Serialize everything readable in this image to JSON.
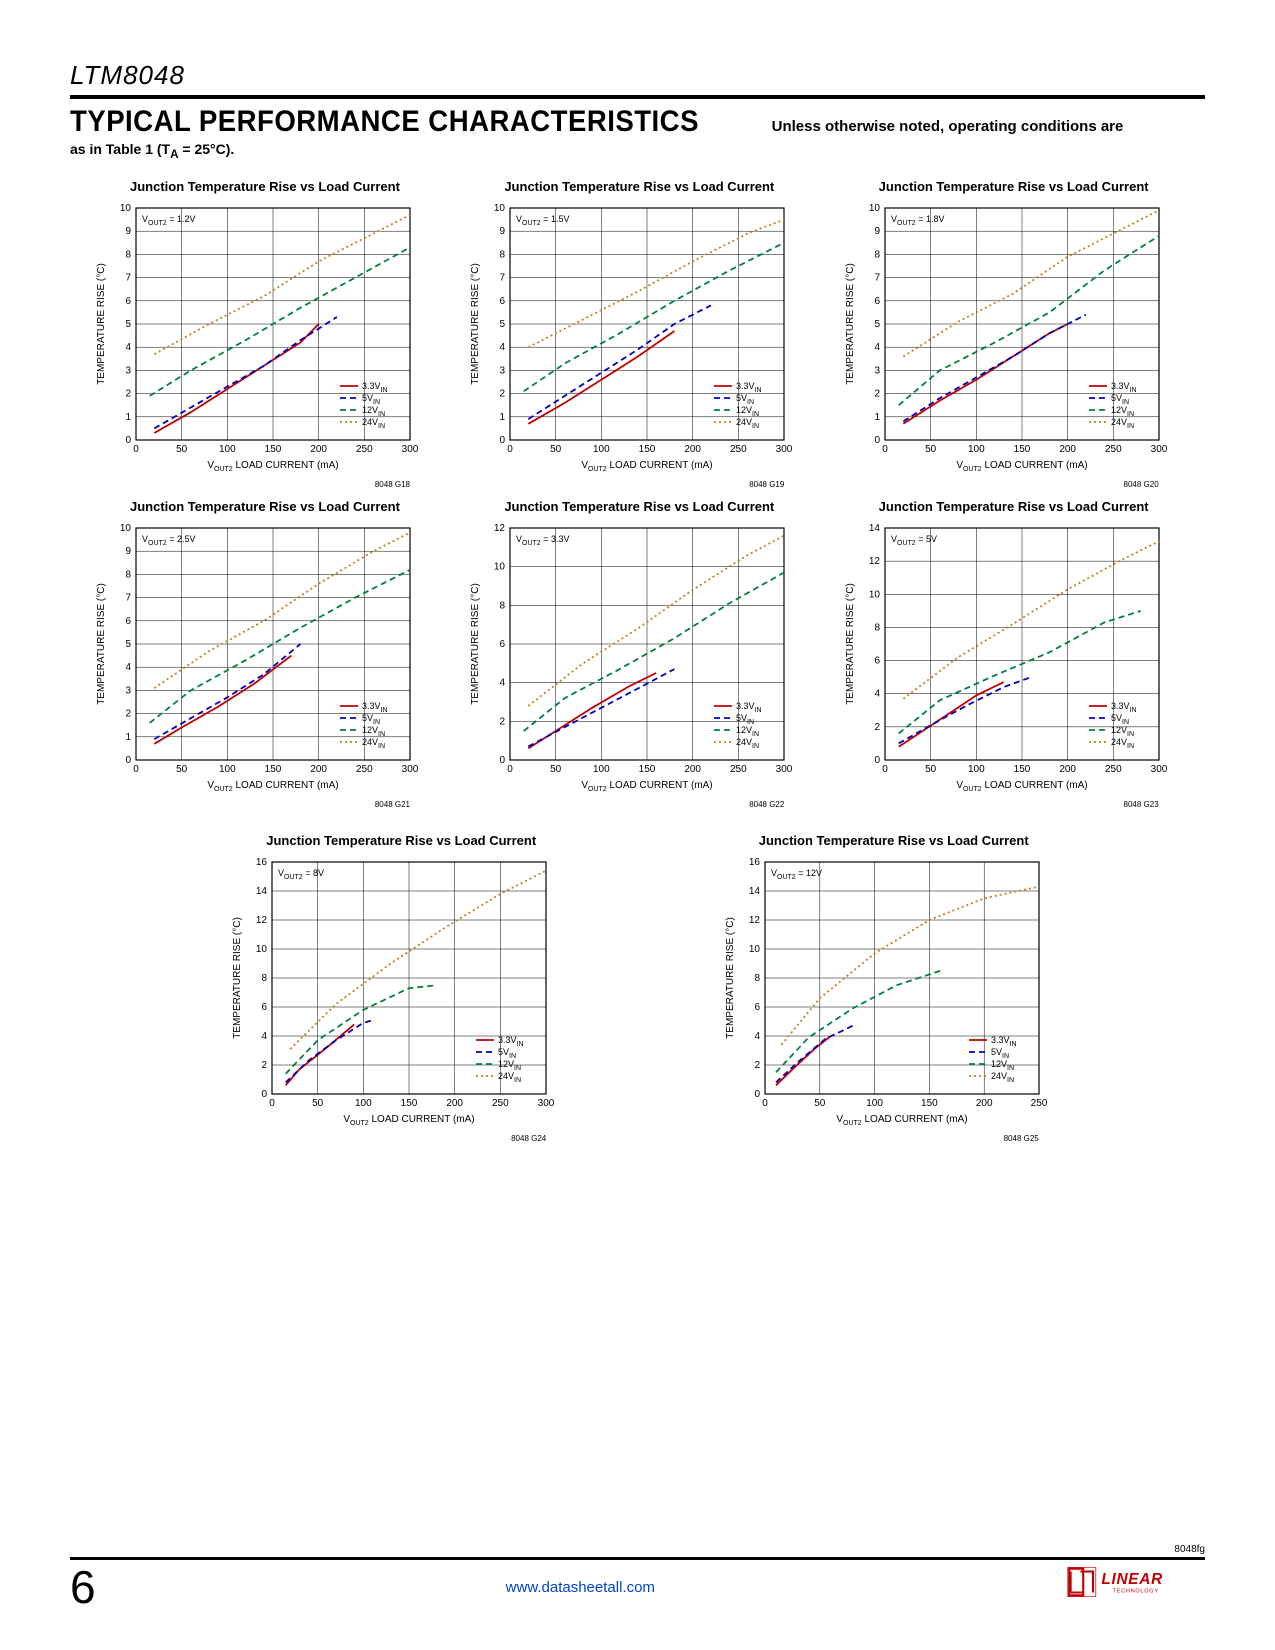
{
  "header": {
    "partNumber": "LTM8048",
    "sectionTitle": "TYPICAL PERFORMANCE CHARACTERISTICS",
    "sectionNote": "Unless otherwise noted, operating conditions are",
    "subNote": "as in Table 1 (T",
    "subNoteSub": "A",
    "subNoteTail": " = 25°C)."
  },
  "common": {
    "ylabel": "TEMPERATURE RISE (°C)",
    "xlabel": "V",
    "xlabelSub": "OUT2",
    "xlabelTail": " LOAD CURRENT (mA)",
    "legend": [
      {
        "label": "3.3V",
        "sub": "IN",
        "color": "#c00000",
        "dash": ""
      },
      {
        "label": "5V",
        "sub": "IN",
        "color": "#0000c0",
        "dash": "6 4"
      },
      {
        "label": "12V",
        "sub": "IN",
        "color": "#008040",
        "dash": "6 4"
      },
      {
        "label": "24V",
        "sub": "IN",
        "color": "#c08020",
        "dash": "2 3"
      }
    ],
    "xticks": [
      0,
      50,
      100,
      150,
      200,
      250,
      300
    ]
  },
  "charts": [
    {
      "title": "Junction Temperature Rise vs Load Current",
      "annot": "V",
      "annotSub": "OUT2",
      "annotTail": " = 1.2V",
      "code": "8048 G18",
      "ymax": 10,
      "yticks": [
        0,
        1,
        2,
        3,
        4,
        5,
        6,
        7,
        8,
        9,
        10
      ],
      "xmax": 300,
      "series": [
        {
          "x": [
            20,
            60,
            100,
            140,
            180,
            200
          ],
          "y": [
            0.3,
            1.2,
            2.2,
            3.2,
            4.2,
            5.0
          ],
          "c": "#c00000",
          "d": ""
        },
        {
          "x": [
            20,
            60,
            100,
            140,
            180,
            220
          ],
          "y": [
            0.5,
            1.4,
            2.3,
            3.2,
            4.3,
            5.3
          ],
          "c": "#0000c0",
          "d": "6 4"
        },
        {
          "x": [
            15,
            60,
            120,
            180,
            240,
            300
          ],
          "y": [
            1.9,
            3.0,
            4.3,
            5.7,
            7.0,
            8.3
          ],
          "c": "#008040",
          "d": "6 4"
        },
        {
          "x": [
            20,
            80,
            140,
            200,
            260,
            300
          ],
          "y": [
            3.7,
            5.0,
            6.2,
            7.7,
            8.9,
            9.7
          ],
          "c": "#c08020",
          "d": "2 3"
        }
      ]
    },
    {
      "title": "Junction Temperature Rise vs Load Current",
      "annot": "V",
      "annotSub": "OUT2",
      "annotTail": " = 1.5V",
      "code": "8048 G19",
      "ymax": 10,
      "yticks": [
        0,
        1,
        2,
        3,
        4,
        5,
        6,
        7,
        8,
        9,
        10
      ],
      "xmax": 300,
      "series": [
        {
          "x": [
            20,
            60,
            100,
            140,
            180
          ],
          "y": [
            0.7,
            1.6,
            2.6,
            3.6,
            4.7
          ],
          "c": "#c00000",
          "d": ""
        },
        {
          "x": [
            20,
            60,
            100,
            140,
            180,
            220
          ],
          "y": [
            0.9,
            1.9,
            2.9,
            3.9,
            5.0,
            5.8
          ],
          "c": "#0000c0",
          "d": "6 4"
        },
        {
          "x": [
            15,
            60,
            120,
            180,
            240,
            300
          ],
          "y": [
            2.1,
            3.3,
            4.6,
            6.0,
            7.3,
            8.5
          ],
          "c": "#008040",
          "d": "6 4"
        },
        {
          "x": [
            20,
            80,
            140,
            200,
            260,
            300
          ],
          "y": [
            4.0,
            5.2,
            6.4,
            7.7,
            8.9,
            9.5
          ],
          "c": "#c08020",
          "d": "2 3"
        }
      ]
    },
    {
      "title": "Junction Temperature Rise vs Load Current",
      "annot": "V",
      "annotSub": "OUT2",
      "annotTail": " = 1.8V",
      "code": "8048 G20",
      "ymax": 10,
      "yticks": [
        0,
        1,
        2,
        3,
        4,
        5,
        6,
        7,
        8,
        9,
        10
      ],
      "xmax": 300,
      "series": [
        {
          "x": [
            20,
            60,
            100,
            140,
            180,
            200
          ],
          "y": [
            0.7,
            1.7,
            2.6,
            3.6,
            4.6,
            5.0
          ],
          "c": "#c00000",
          "d": ""
        },
        {
          "x": [
            20,
            60,
            100,
            140,
            180,
            220
          ],
          "y": [
            0.8,
            1.8,
            2.7,
            3.6,
            4.6,
            5.4
          ],
          "c": "#0000c0",
          "d": "6 4"
        },
        {
          "x": [
            15,
            60,
            120,
            180,
            240,
            300
          ],
          "y": [
            1.5,
            3.0,
            4.2,
            5.5,
            7.3,
            8.8
          ],
          "c": "#008040",
          "d": "6 4"
        },
        {
          "x": [
            20,
            80,
            140,
            200,
            260,
            300
          ],
          "y": [
            3.6,
            5.1,
            6.3,
            7.9,
            9.1,
            9.9
          ],
          "c": "#c08020",
          "d": "2 3"
        }
      ]
    },
    {
      "title": "Junction Temperature Rise vs Load Current",
      "annot": "V",
      "annotSub": "OUT2",
      "annotTail": " = 2.5V",
      "code": "8048 G21",
      "ymax": 10,
      "yticks": [
        0,
        1,
        2,
        3,
        4,
        5,
        6,
        7,
        8,
        9,
        10
      ],
      "xmax": 300,
      "series": [
        {
          "x": [
            20,
            50,
            90,
            130,
            170
          ],
          "y": [
            0.7,
            1.4,
            2.3,
            3.3,
            4.5
          ],
          "c": "#c00000",
          "d": ""
        },
        {
          "x": [
            20,
            60,
            100,
            140,
            180
          ],
          "y": [
            0.9,
            1.8,
            2.7,
            3.7,
            5.0
          ],
          "c": "#0000c0",
          "d": "6 4"
        },
        {
          "x": [
            15,
            60,
            120,
            180,
            240,
            300
          ],
          "y": [
            1.6,
            3.0,
            4.3,
            5.7,
            7.0,
            8.2
          ],
          "c": "#008040",
          "d": "6 4"
        },
        {
          "x": [
            20,
            80,
            140,
            200,
            260,
            300
          ],
          "y": [
            3.1,
            4.7,
            6.0,
            7.6,
            9.0,
            9.8
          ],
          "c": "#c08020",
          "d": "2 3"
        }
      ]
    },
    {
      "title": "Junction Temperature Rise vs Load Current",
      "annot": "V",
      "annotSub": "OUT2",
      "annotTail": " = 3.3V",
      "code": "8048 G22",
      "ymax": 12,
      "yticks": [
        0,
        2,
        4,
        6,
        8,
        10,
        12
      ],
      "xmax": 300,
      "series": [
        {
          "x": [
            20,
            50,
            90,
            130,
            160
          ],
          "y": [
            0.6,
            1.5,
            2.7,
            3.8,
            4.5
          ],
          "c": "#c00000",
          "d": ""
        },
        {
          "x": [
            20,
            60,
            100,
            140,
            180
          ],
          "y": [
            0.7,
            1.7,
            2.7,
            3.7,
            4.7
          ],
          "c": "#0000c0",
          "d": "6 4"
        },
        {
          "x": [
            15,
            60,
            120,
            180,
            240,
            300
          ],
          "y": [
            1.5,
            3.2,
            4.7,
            6.3,
            8.1,
            9.7
          ],
          "c": "#008040",
          "d": "6 4"
        },
        {
          "x": [
            20,
            80,
            140,
            200,
            260,
            300
          ],
          "y": [
            2.8,
            5.0,
            6.8,
            8.8,
            10.6,
            11.6
          ],
          "c": "#c08020",
          "d": "2 3"
        }
      ]
    },
    {
      "title": "Junction Temperature Rise vs Load Current",
      "annot": "V",
      "annotSub": "OUT2",
      "annotTail": " = 5V",
      "code": "8048 G23",
      "ymax": 14,
      "yticks": [
        0,
        2,
        4,
        6,
        8,
        10,
        12,
        14
      ],
      "xmax": 300,
      "series": [
        {
          "x": [
            15,
            40,
            70,
            100,
            130
          ],
          "y": [
            0.8,
            1.7,
            2.8,
            3.9,
            4.7
          ],
          "c": "#c00000",
          "d": ""
        },
        {
          "x": [
            15,
            50,
            90,
            130,
            160
          ],
          "y": [
            1.0,
            2.1,
            3.3,
            4.4,
            5.0
          ],
          "c": "#0000c0",
          "d": "6 4"
        },
        {
          "x": [
            15,
            60,
            120,
            180,
            240,
            280
          ],
          "y": [
            1.6,
            3.6,
            5.1,
            6.5,
            8.3,
            9.0
          ],
          "c": "#008040",
          "d": "6 4"
        },
        {
          "x": [
            20,
            80,
            140,
            200,
            260,
            300
          ],
          "y": [
            3.7,
            6.2,
            8.2,
            10.3,
            12.1,
            13.2
          ],
          "c": "#c08020",
          "d": "2 3"
        }
      ]
    },
    {
      "title": "Junction Temperature Rise vs Load Current",
      "annot": "V",
      "annotSub": "OUT2",
      "annotTail": " = 8V",
      "code": "8048 G24",
      "ymax": 16,
      "yticks": [
        0,
        2,
        4,
        6,
        8,
        10,
        12,
        14,
        16
      ],
      "xmax": 300,
      "series": [
        {
          "x": [
            15,
            30,
            60,
            90
          ],
          "y": [
            0.6,
            1.7,
            3.2,
            4.8
          ],
          "c": "#c00000",
          "d": ""
        },
        {
          "x": [
            15,
            40,
            70,
            100,
            110
          ],
          "y": [
            0.8,
            2.3,
            3.7,
            4.9,
            5.1
          ],
          "c": "#0000c0",
          "d": "6 4"
        },
        {
          "x": [
            15,
            50,
            100,
            150,
            180
          ],
          "y": [
            1.4,
            3.7,
            5.8,
            7.3,
            7.5
          ],
          "c": "#008040",
          "d": "6 4"
        },
        {
          "x": [
            20,
            70,
            130,
            190,
            250,
            300
          ],
          "y": [
            3.1,
            6.2,
            9.0,
            11.5,
            13.8,
            15.4
          ],
          "c": "#c08020",
          "d": "2 3"
        }
      ]
    },
    {
      "title": "Junction Temperature Rise vs Load Current",
      "annot": "V",
      "annotSub": "OUT2",
      "annotTail": " = 12V",
      "code": "8048 G25",
      "ymax": 16,
      "yticks": [
        0,
        2,
        4,
        6,
        8,
        10,
        12,
        14,
        16
      ],
      "xmax": 250,
      "series": [
        {
          "x": [
            10,
            25,
            45,
            60
          ],
          "y": [
            0.6,
            1.7,
            3.1,
            4.0
          ],
          "c": "#c00000",
          "d": ""
        },
        {
          "x": [
            10,
            30,
            55,
            80
          ],
          "y": [
            0.8,
            2.2,
            3.8,
            4.7
          ],
          "c": "#0000c0",
          "d": "6 4"
        },
        {
          "x": [
            10,
            40,
            80,
            120,
            160
          ],
          "y": [
            1.5,
            3.9,
            5.9,
            7.5,
            8.5
          ],
          "c": "#008040",
          "d": "6 4"
        },
        {
          "x": [
            15,
            50,
            100,
            150,
            200,
            250
          ],
          "y": [
            3.4,
            6.6,
            9.7,
            12.0,
            13.5,
            14.3
          ],
          "c": "#c08020",
          "d": "2 3"
        }
      ]
    }
  ],
  "footer": {
    "docCode": "8048fg",
    "pageNum": "6",
    "url": "www.datasheetall.com",
    "logoText": "LINEAR",
    "logoSub": "TECHNOLOGY"
  }
}
